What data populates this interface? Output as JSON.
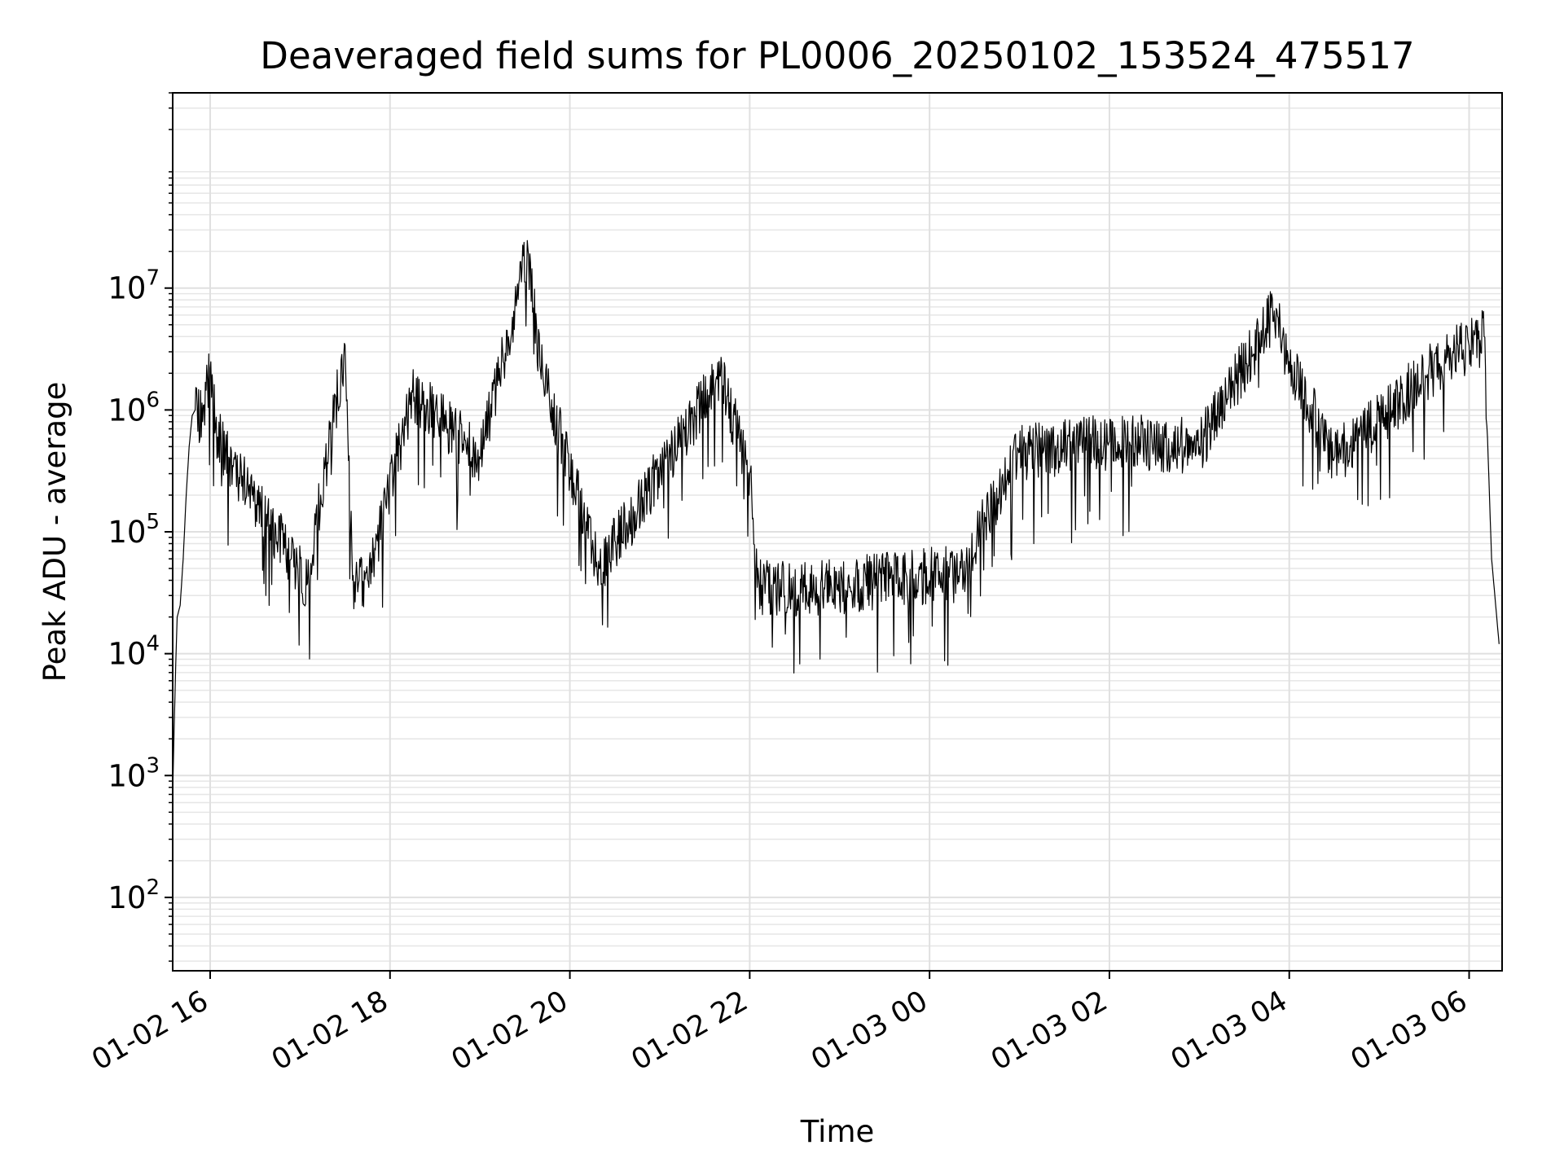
{
  "chart_data": {
    "type": "line",
    "title": "Deaveraged field sums for PL0006_20250102_153524_475517",
    "xlabel": "Time",
    "ylabel": "Peak ADU - average",
    "yscale": "log",
    "ylim": [
      25,
      400000000
    ],
    "xlim": [
      "2025-01-02 15:35",
      "2025-01-03 06:22"
    ],
    "grid": true,
    "x_ticks": [
      {
        "t": "2025-01-02 16:00",
        "label": "01-02 16"
      },
      {
        "t": "2025-01-02 18:00",
        "label": "01-02 18"
      },
      {
        "t": "2025-01-02 20:00",
        "label": "01-02 20"
      },
      {
        "t": "2025-01-02 22:00",
        "label": "01-02 22"
      },
      {
        "t": "2025-01-03 00:00",
        "label": "01-03 00"
      },
      {
        "t": "2025-01-03 02:00",
        "label": "01-03 02"
      },
      {
        "t": "2025-01-03 04:00",
        "label": "01-03 04"
      },
      {
        "t": "2025-01-03 06:00",
        "label": "01-03 06"
      }
    ],
    "y_ticks": [
      {
        "value": 100,
        "base": "10",
        "exp": "2"
      },
      {
        "value": 1000,
        "base": "10",
        "exp": "3"
      },
      {
        "value": 10000,
        "base": "10",
        "exp": "4"
      },
      {
        "value": 100000,
        "base": "10",
        "exp": "5"
      },
      {
        "value": 1000000,
        "base": "10",
        "exp": "6"
      },
      {
        "value": 10000000,
        "base": "10",
        "exp": "7"
      }
    ],
    "series": [
      {
        "color": "#000000",
        "points": [
          [
            "2025-01-02 15:35",
            700
          ],
          [
            "2025-01-02 15:36",
            2500
          ],
          [
            "2025-01-02 15:37",
            8000
          ],
          [
            "2025-01-02 15:38",
            20000
          ],
          [
            "2025-01-02 15:40",
            25000
          ],
          [
            "2025-01-02 15:42",
            60000
          ],
          [
            "2025-01-02 15:44",
            200000
          ],
          [
            "2025-01-02 15:46",
            500000
          ],
          [
            "2025-01-02 15:48",
            900000
          ],
          [
            "2025-01-02 15:50",
            1000000
          ],
          [
            "2025-01-02 15:55",
            800000
          ],
          [
            "2025-01-02 16:00",
            2200000
          ],
          [
            "2025-01-02 16:05",
            600000
          ],
          [
            "2025-01-02 16:15",
            350000
          ],
          [
            "2025-01-02 17:05",
            38000
          ],
          [
            "2025-01-02 17:30",
            3400000
          ],
          [
            "2025-01-02 17:35",
            40000
          ],
          [
            "2025-01-02 17:45",
            40000
          ],
          [
            "2025-01-02 18:15",
            1400000
          ],
          [
            "2025-01-02 19:00",
            400000
          ],
          [
            "2025-01-02 19:32",
            21000000
          ],
          [
            "2025-01-02 19:40",
            2300000
          ],
          [
            "2025-01-02 20:20",
            50000
          ],
          [
            "2025-01-02 21:40",
            1900000
          ],
          [
            "2025-01-02 22:00",
            300000
          ],
          [
            "2025-01-02 22:05",
            35000
          ],
          [
            "2025-01-02 22:50",
            34000
          ],
          [
            "2025-01-02 23:40",
            42000
          ],
          [
            "2025-01-03 00:20",
            45000
          ],
          [
            "2025-01-03 01:00",
            450000
          ],
          [
            "2025-01-03 02:00",
            550000
          ],
          [
            "2025-01-03 03:00",
            500000
          ],
          [
            "2025-01-03 03:50",
            6500000
          ],
          [
            "2025-01-03 04:00",
            2500000
          ],
          [
            "2025-01-03 04:30",
            400000
          ],
          [
            "2025-01-03 05:40",
            2400000
          ],
          [
            "2025-01-03 06:10",
            4000000
          ],
          [
            "2025-01-03 06:15",
            60000
          ],
          [
            "2025-01-03 06:20",
            12000
          ]
        ]
      }
    ]
  }
}
